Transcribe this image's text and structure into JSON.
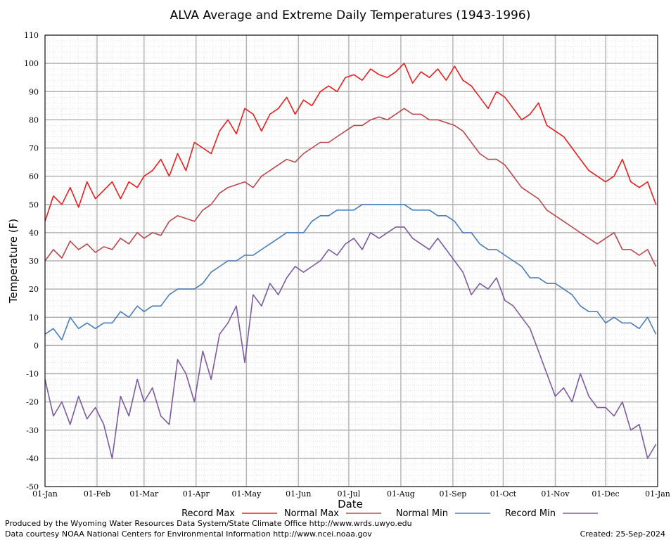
{
  "chart_data": {
    "type": "line",
    "title": "ALVA Average and Extreme Daily Temperatures (1943-1996)",
    "xlabel": "Date",
    "ylabel": "Temperature (F)",
    "ylim": [
      -50,
      110
    ],
    "yticks": [
      -50,
      -40,
      -30,
      -20,
      -10,
      0,
      10,
      20,
      30,
      40,
      50,
      60,
      70,
      80,
      90,
      100,
      110
    ],
    "xlim": [
      "01-Jan",
      "01-Jan"
    ],
    "xticks": [
      "01-Jan",
      "01-Feb",
      "01-Mar",
      "01-Apr",
      "01-May",
      "01-Jun",
      "01-Jul",
      "01-Aug",
      "01-Sep",
      "01-Oct",
      "01-Nov",
      "01-Dec",
      "01-Jan"
    ],
    "grid": true,
    "legend_position": "bottom",
    "series": [
      {
        "name": "Record Max",
        "color": "#ee1c1c",
        "x": [
          "01-Jan",
          "06-Jan",
          "11-Jan",
          "16-Jan",
          "21-Jan",
          "26-Jan",
          "31-Jan",
          "05-Feb",
          "10-Feb",
          "15-Feb",
          "20-Feb",
          "25-Feb",
          "01-Mar",
          "06-Mar",
          "11-Mar",
          "16-Mar",
          "21-Mar",
          "26-Mar",
          "31-Mar",
          "05-Apr",
          "10-Apr",
          "15-Apr",
          "20-Apr",
          "25-Apr",
          "30-Apr",
          "05-May",
          "10-May",
          "15-May",
          "20-May",
          "25-May",
          "30-May",
          "04-Jun",
          "09-Jun",
          "14-Jun",
          "19-Jun",
          "24-Jun",
          "29-Jun",
          "04-Jul",
          "09-Jul",
          "14-Jul",
          "19-Jul",
          "24-Jul",
          "29-Jul",
          "03-Aug",
          "08-Aug",
          "13-Aug",
          "18-Aug",
          "23-Aug",
          "28-Aug",
          "02-Sep",
          "07-Sep",
          "12-Sep",
          "17-Sep",
          "22-Sep",
          "27-Sep",
          "02-Oct",
          "07-Oct",
          "12-Oct",
          "17-Oct",
          "22-Oct",
          "27-Oct",
          "01-Nov",
          "06-Nov",
          "11-Nov",
          "16-Nov",
          "21-Nov",
          "26-Nov",
          "01-Dec",
          "06-Dec",
          "11-Dec",
          "16-Dec",
          "21-Dec",
          "26-Dec",
          "31-Dec"
        ],
        "values": [
          44,
          53,
          50,
          56,
          49,
          58,
          52,
          55,
          58,
          52,
          58,
          56,
          60,
          62,
          66,
          60,
          68,
          62,
          72,
          70,
          68,
          76,
          80,
          75,
          84,
          82,
          76,
          82,
          84,
          88,
          82,
          87,
          85,
          90,
          92,
          90,
          95,
          96,
          94,
          98,
          96,
          95,
          97,
          100,
          93,
          97,
          95,
          98,
          94,
          99,
          94,
          92,
          88,
          84,
          90,
          88,
          84,
          80,
          82,
          86,
          78,
          76,
          74,
          70,
          66,
          62,
          60,
          58,
          60,
          66,
          58,
          56,
          58,
          50
        ]
      },
      {
        "name": "Normal Max",
        "color": "#b9484e",
        "x": [
          "01-Jan",
          "06-Jan",
          "11-Jan",
          "16-Jan",
          "21-Jan",
          "26-Jan",
          "31-Jan",
          "05-Feb",
          "10-Feb",
          "15-Feb",
          "20-Feb",
          "25-Feb",
          "01-Mar",
          "06-Mar",
          "11-Mar",
          "16-Mar",
          "21-Mar",
          "26-Mar",
          "31-Mar",
          "05-Apr",
          "10-Apr",
          "15-Apr",
          "20-Apr",
          "25-Apr",
          "30-Apr",
          "05-May",
          "10-May",
          "15-May",
          "20-May",
          "25-May",
          "30-May",
          "04-Jun",
          "09-Jun",
          "14-Jun",
          "19-Jun",
          "24-Jun",
          "29-Jun",
          "04-Jul",
          "09-Jul",
          "14-Jul",
          "19-Jul",
          "24-Jul",
          "29-Jul",
          "03-Aug",
          "08-Aug",
          "13-Aug",
          "18-Aug",
          "23-Aug",
          "28-Aug",
          "02-Sep",
          "07-Sep",
          "12-Sep",
          "17-Sep",
          "22-Sep",
          "27-Sep",
          "02-Oct",
          "07-Oct",
          "12-Oct",
          "17-Oct",
          "22-Oct",
          "27-Oct",
          "01-Nov",
          "06-Nov",
          "11-Nov",
          "16-Nov",
          "21-Nov",
          "26-Nov",
          "01-Dec",
          "06-Dec",
          "11-Dec",
          "16-Dec",
          "21-Dec",
          "26-Dec",
          "31-Dec"
        ],
        "values": [
          30,
          34,
          31,
          37,
          34,
          36,
          33,
          35,
          34,
          38,
          36,
          40,
          38,
          40,
          39,
          44,
          46,
          45,
          44,
          48,
          50,
          54,
          56,
          57,
          58,
          56,
          60,
          62,
          64,
          66,
          65,
          68,
          70,
          72,
          72,
          74,
          76,
          78,
          78,
          80,
          81,
          80,
          82,
          84,
          82,
          82,
          80,
          80,
          79,
          78,
          76,
          72,
          68,
          66,
          66,
          64,
          60,
          56,
          54,
          52,
          48,
          46,
          44,
          42,
          40,
          38,
          36,
          38,
          40,
          34,
          34,
          32,
          34,
          28
        ]
      },
      {
        "name": "Normal Min",
        "color": "#4a7db8",
        "x": [
          "01-Jan",
          "06-Jan",
          "11-Jan",
          "16-Jan",
          "21-Jan",
          "26-Jan",
          "31-Jan",
          "05-Feb",
          "10-Feb",
          "15-Feb",
          "20-Feb",
          "25-Feb",
          "01-Mar",
          "06-Mar",
          "11-Mar",
          "16-Mar",
          "21-Mar",
          "26-Mar",
          "31-Mar",
          "05-Apr",
          "10-Apr",
          "15-Apr",
          "20-Apr",
          "25-Apr",
          "30-Apr",
          "05-May",
          "10-May",
          "15-May",
          "20-May",
          "25-May",
          "30-May",
          "04-Jun",
          "09-Jun",
          "14-Jun",
          "19-Jun",
          "24-Jun",
          "29-Jun",
          "04-Jul",
          "09-Jul",
          "14-Jul",
          "19-Jul",
          "24-Jul",
          "29-Jul",
          "03-Aug",
          "08-Aug",
          "13-Aug",
          "18-Aug",
          "23-Aug",
          "28-Aug",
          "02-Sep",
          "07-Sep",
          "12-Sep",
          "17-Sep",
          "22-Sep",
          "27-Sep",
          "02-Oct",
          "07-Oct",
          "12-Oct",
          "17-Oct",
          "22-Oct",
          "27-Oct",
          "01-Nov",
          "06-Nov",
          "11-Nov",
          "16-Nov",
          "21-Nov",
          "26-Nov",
          "01-Dec",
          "06-Dec",
          "11-Dec",
          "16-Dec",
          "21-Dec",
          "26-Dec",
          "31-Dec"
        ],
        "values": [
          4,
          6,
          2,
          10,
          6,
          8,
          6,
          8,
          8,
          12,
          10,
          14,
          12,
          14,
          14,
          18,
          20,
          20,
          20,
          22,
          26,
          28,
          30,
          30,
          32,
          32,
          34,
          36,
          38,
          40,
          40,
          40,
          44,
          46,
          46,
          48,
          48,
          48,
          50,
          50,
          50,
          50,
          50,
          50,
          48,
          48,
          48,
          46,
          46,
          44,
          40,
          40,
          36,
          34,
          34,
          32,
          30,
          28,
          24,
          24,
          22,
          22,
          20,
          18,
          14,
          12,
          12,
          8,
          10,
          8,
          8,
          6,
          10,
          4
        ]
      },
      {
        "name": "Record Min",
        "color": "#7d5a9e",
        "x": [
          "01-Jan",
          "06-Jan",
          "11-Jan",
          "16-Jan",
          "21-Jan",
          "26-Jan",
          "31-Jan",
          "05-Feb",
          "10-Feb",
          "15-Feb",
          "20-Feb",
          "25-Feb",
          "01-Mar",
          "06-Mar",
          "11-Mar",
          "16-Mar",
          "21-Mar",
          "26-Mar",
          "31-Mar",
          "05-Apr",
          "10-Apr",
          "15-Apr",
          "20-Apr",
          "25-Apr",
          "30-Apr",
          "05-May",
          "10-May",
          "15-May",
          "20-May",
          "25-May",
          "30-May",
          "04-Jun",
          "09-Jun",
          "14-Jun",
          "19-Jun",
          "24-Jun",
          "29-Jun",
          "04-Jul",
          "09-Jul",
          "14-Jul",
          "19-Jul",
          "24-Jul",
          "29-Jul",
          "03-Aug",
          "08-Aug",
          "13-Aug",
          "18-Aug",
          "23-Aug",
          "28-Aug",
          "02-Sep",
          "07-Sep",
          "12-Sep",
          "17-Sep",
          "22-Sep",
          "27-Sep",
          "02-Oct",
          "07-Oct",
          "12-Oct",
          "17-Oct",
          "22-Oct",
          "27-Oct",
          "01-Nov",
          "06-Nov",
          "11-Nov",
          "16-Nov",
          "21-Nov",
          "26-Nov",
          "01-Dec",
          "06-Dec",
          "11-Dec",
          "16-Dec",
          "21-Dec",
          "26-Dec",
          "31-Dec"
        ],
        "values": [
          -12,
          -25,
          -20,
          -28,
          -18,
          -26,
          -22,
          -28,
          -40,
          -18,
          -25,
          -12,
          -20,
          -15,
          -25,
          -28,
          -5,
          -10,
          -20,
          -2,
          -12,
          4,
          8,
          14,
          -6,
          18,
          14,
          22,
          18,
          24,
          28,
          26,
          28,
          30,
          34,
          32,
          36,
          38,
          34,
          40,
          38,
          40,
          42,
          42,
          38,
          36,
          34,
          38,
          34,
          30,
          26,
          18,
          22,
          20,
          24,
          16,
          14,
          10,
          6,
          -2,
          -10,
          -18,
          -15,
          -20,
          -10,
          -18,
          -22,
          -22,
          -25,
          -20,
          -30,
          -28,
          -40,
          -35
        ]
      }
    ]
  },
  "footer": {
    "line1": "Produced by the Wyoming Water Resources Data System/State Climate Office http://www.wrds.uwyo.edu",
    "line2": "Data courtesy NOAA National Centers for Environmental Information http://www.ncei.noaa.gov",
    "created": "Created:  25-Sep-2024"
  }
}
